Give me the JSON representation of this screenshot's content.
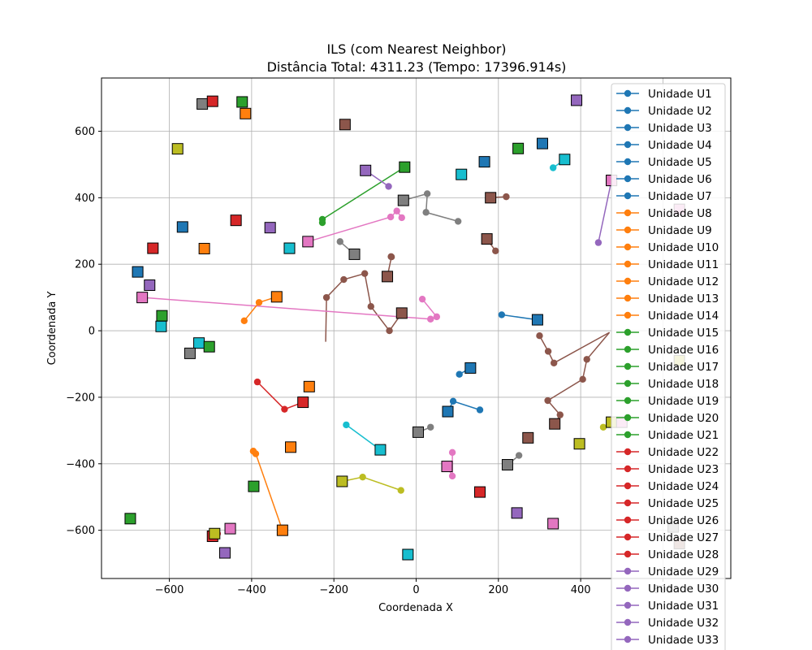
{
  "chart_data": {
    "type": "scatter",
    "title": "ILS (com Nearest Neighbor)",
    "subtitle": "Distância Total: 4311.23 (Tempo: 17396.914s)",
    "xlabel": "Coordenada X",
    "ylabel": "Coordenada Y",
    "xlim": [
      -765,
      765
    ],
    "ylim": [
      -745,
      760
    ],
    "xticks": [
      -600,
      -400,
      -200,
      0,
      200,
      400,
      600
    ],
    "yticks": [
      -600,
      -400,
      -200,
      0,
      200,
      400,
      600
    ],
    "tick_labels_x": [
      "−600",
      "−400",
      "−200",
      "0",
      "200",
      "400",
      "600"
    ],
    "tick_labels_y": [
      "−600",
      "−400",
      "−200",
      "0",
      "200",
      "400",
      "600"
    ],
    "grid": true,
    "legend_position": "right",
    "colors": [
      "#1f77b4",
      "#ff7f0e",
      "#2ca02c",
      "#d62728",
      "#9467bd",
      "#8c564b",
      "#e377c2",
      "#7f7f7f",
      "#bcbd22",
      "#17becf"
    ],
    "legend_entries": [
      {
        "label": "Unidade U1",
        "color": "#1f77b4"
      },
      {
        "label": "Unidade U2",
        "color": "#1f77b4"
      },
      {
        "label": "Unidade U3",
        "color": "#1f77b4"
      },
      {
        "label": "Unidade U4",
        "color": "#1f77b4"
      },
      {
        "label": "Unidade U5",
        "color": "#1f77b4"
      },
      {
        "label": "Unidade U6",
        "color": "#1f77b4"
      },
      {
        "label": "Unidade U7",
        "color": "#1f77b4"
      },
      {
        "label": "Unidade U8",
        "color": "#ff7f0e"
      },
      {
        "label": "Unidade U9",
        "color": "#ff7f0e"
      },
      {
        "label": "Unidade U10",
        "color": "#ff7f0e"
      },
      {
        "label": "Unidade U11",
        "color": "#ff7f0e"
      },
      {
        "label": "Unidade U12",
        "color": "#ff7f0e"
      },
      {
        "label": "Unidade U13",
        "color": "#ff7f0e"
      },
      {
        "label": "Unidade U14",
        "color": "#ff7f0e"
      },
      {
        "label": "Unidade U15",
        "color": "#2ca02c"
      },
      {
        "label": "Unidade U16",
        "color": "#2ca02c"
      },
      {
        "label": "Unidade U17",
        "color": "#2ca02c"
      },
      {
        "label": "Unidade U18",
        "color": "#2ca02c"
      },
      {
        "label": "Unidade U19",
        "color": "#2ca02c"
      },
      {
        "label": "Unidade U20",
        "color": "#2ca02c"
      },
      {
        "label": "Unidade U21",
        "color": "#2ca02c"
      },
      {
        "label": "Unidade U22",
        "color": "#d62728"
      },
      {
        "label": "Unidade U23",
        "color": "#d62728"
      },
      {
        "label": "Unidade U24",
        "color": "#d62728"
      },
      {
        "label": "Unidade U25",
        "color": "#d62728"
      },
      {
        "label": "Unidade U26",
        "color": "#d62728"
      },
      {
        "label": "Unidade U27",
        "color": "#d62728"
      },
      {
        "label": "Unidade U28",
        "color": "#d62728"
      },
      {
        "label": "Unidade U29",
        "color": "#9467bd"
      },
      {
        "label": "Unidade U30",
        "color": "#9467bd"
      },
      {
        "label": "Unidade U31",
        "color": "#9467bd"
      },
      {
        "label": "Unidade U32",
        "color": "#9467bd"
      },
      {
        "label": "Unidade U33",
        "color": "#9467bd"
      }
    ],
    "routes": [
      {
        "color": "#2ca02c",
        "points": [
          [
            -28,
            492
          ],
          [
            -228,
            335
          ],
          [
            -228,
            325
          ]
        ]
      },
      {
        "color": "#e377c2",
        "points": [
          [
            -263,
            268
          ],
          [
            -62,
            342
          ],
          [
            -47,
            360
          ],
          [
            -35,
            340
          ]
        ]
      },
      {
        "color": "#9467bd",
        "points": [
          [
            -123,
            482
          ],
          [
            -67,
            434
          ]
        ]
      },
      {
        "color": "#7f7f7f",
        "points": [
          [
            -31,
            392
          ],
          [
            27,
            412
          ],
          [
            24,
            356
          ],
          [
            102,
            329
          ]
        ]
      },
      {
        "color": "#8c564b",
        "points": [
          [
            181,
            400
          ],
          [
            219,
            403
          ]
        ]
      },
      {
        "color": "#8c564b",
        "points": [
          [
            172,
            276
          ],
          [
            193,
            240
          ]
        ]
      },
      {
        "color": "#7f7f7f",
        "points": [
          [
            -150,
            230
          ],
          [
            -185,
            268
          ]
        ]
      },
      {
        "color": "#8c564b",
        "points": [
          [
            -70,
            163
          ],
          [
            -60,
            222
          ],
          [
            -61,
            223
          ]
        ]
      },
      {
        "color": "#8c564b",
        "points": [
          [
            -220,
            -33
          ],
          [
            -218,
            100
          ],
          [
            -176,
            154
          ],
          [
            -125,
            172
          ],
          [
            -110,
            73
          ],
          [
            -65,
            0
          ],
          [
            -35,
            53
          ]
        ]
      },
      {
        "color": "#e377c2",
        "points": [
          [
            -666,
            100
          ],
          [
            35,
            35
          ],
          [
            50,
            42
          ],
          [
            15,
            95
          ]
        ]
      },
      {
        "color": "#ff7f0e",
        "points": [
          [
            -339,
            102
          ],
          [
            -382,
            85
          ],
          [
            -418,
            30
          ]
        ]
      },
      {
        "color": "#1f77b4",
        "points": [
          [
            295,
            33
          ],
          [
            208,
            48
          ]
        ]
      },
      {
        "color": "#8c564b",
        "points": [
          [
            470,
            -5
          ],
          [
            335,
            -97
          ],
          [
            321,
            -62
          ],
          [
            300,
            -15
          ]
        ]
      },
      {
        "color": "#8c564b",
        "points": [
          [
            470,
            -5
          ],
          [
            415,
            -86
          ],
          [
            405,
            -146
          ],
          [
            320,
            -210
          ],
          [
            350,
            -253
          ],
          [
            337,
            -280
          ]
        ]
      },
      {
        "color": "#1f77b4",
        "points": [
          [
            132,
            -112
          ],
          [
            105,
            -131
          ]
        ]
      },
      {
        "color": "#1f77b4",
        "points": [
          [
            77,
            -243
          ],
          [
            90,
            -212
          ],
          [
            155,
            -238
          ]
        ]
      },
      {
        "color": "#d62728",
        "points": [
          [
            -275,
            -215
          ],
          [
            -320,
            -236
          ],
          [
            -386,
            -154
          ]
        ]
      },
      {
        "color": "#17becf",
        "points": [
          [
            -87,
            -358
          ],
          [
            -170,
            -283
          ]
        ]
      },
      {
        "color": "#7f7f7f",
        "points": [
          [
            5,
            -305
          ],
          [
            35,
            -290
          ]
        ]
      },
      {
        "color": "#e377c2",
        "points": [
          [
            75,
            -408
          ],
          [
            88,
            -437
          ],
          [
            88,
            -366
          ]
        ]
      },
      {
        "color": "#7f7f7f",
        "points": [
          [
            222,
            -403
          ],
          [
            250,
            -375
          ]
        ]
      },
      {
        "color": "#bcbd22",
        "points": [
          [
            -180,
            -453
          ],
          [
            -130,
            -440
          ],
          [
            -37,
            -480
          ]
        ]
      },
      {
        "color": "#ff7f0e",
        "points": [
          [
            -325,
            -600
          ],
          [
            -390,
            -370
          ],
          [
            -396,
            -362
          ]
        ]
      },
      {
        "color": "#d62728",
        "points": [
          [
            -495,
            -618
          ],
          [
            -483,
            -610
          ]
        ]
      },
      {
        "color": "#bcbd22",
        "points": [
          [
            -490,
            -610
          ],
          [
            -487,
            -605
          ]
        ]
      },
      {
        "color": "#17becf",
        "points": [
          [
            361,
            515
          ],
          [
            333,
            490
          ]
        ]
      },
      {
        "color": "#9467bd",
        "points": [
          [
            475,
            452
          ],
          [
            443,
            265
          ]
        ]
      },
      {
        "color": "#bcbd22",
        "points": [
          [
            475,
            -275
          ],
          [
            455,
            -290
          ]
        ]
      }
    ],
    "squares": [
      {
        "x": -520,
        "y": 682,
        "color": "#7f7f7f"
      },
      {
        "x": -495,
        "y": 690,
        "color": "#d62728"
      },
      {
        "x": -423,
        "y": 688,
        "color": "#2ca02c"
      },
      {
        "x": -415,
        "y": 653,
        "color": "#ff7f0e"
      },
      {
        "x": -173,
        "y": 620,
        "color": "#8c564b"
      },
      {
        "x": -580,
        "y": 547,
        "color": "#bcbd22"
      },
      {
        "x": -123,
        "y": 482,
        "color": "#9467bd"
      },
      {
        "x": -28,
        "y": 492,
        "color": "#2ca02c"
      },
      {
        "x": 110,
        "y": 470,
        "color": "#17becf"
      },
      {
        "x": 166,
        "y": 508,
        "color": "#1f77b4"
      },
      {
        "x": 248,
        "y": 548,
        "color": "#2ca02c"
      },
      {
        "x": 307,
        "y": 563,
        "color": "#1f77b4"
      },
      {
        "x": 361,
        "y": 515,
        "color": "#17becf"
      },
      {
        "x": 390,
        "y": 693,
        "color": "#9467bd"
      },
      {
        "x": -31,
        "y": 392,
        "color": "#7f7f7f"
      },
      {
        "x": 181,
        "y": 400,
        "color": "#8c564b"
      },
      {
        "x": 475,
        "y": 452,
        "color": "#9467bd"
      },
      {
        "x": -568,
        "y": 312,
        "color": "#1f77b4"
      },
      {
        "x": -438,
        "y": 332,
        "color": "#d62728"
      },
      {
        "x": -355,
        "y": 310,
        "color": "#9467bd"
      },
      {
        "x": -263,
        "y": 268,
        "color": "#e377c2"
      },
      {
        "x": -640,
        "y": 248,
        "color": "#d62728"
      },
      {
        "x": -515,
        "y": 247,
        "color": "#ff7f0e"
      },
      {
        "x": -308,
        "y": 248,
        "color": "#2ca02c"
      },
      {
        "x": -308,
        "y": 248,
        "color": "#17becf"
      },
      {
        "x": -150,
        "y": 230,
        "color": "#7f7f7f"
      },
      {
        "x": 172,
        "y": 276,
        "color": "#8c564b"
      },
      {
        "x": -677,
        "y": 177,
        "color": "#1f77b4"
      },
      {
        "x": -648,
        "y": 137,
        "color": "#9467bd"
      },
      {
        "x": -70,
        "y": 163,
        "color": "#8c564b"
      },
      {
        "x": -666,
        "y": 100,
        "color": "#e377c2"
      },
      {
        "x": -339,
        "y": 102,
        "color": "#ff7f0e"
      },
      {
        "x": -35,
        "y": 53,
        "color": "#8c564b"
      },
      {
        "x": -618,
        "y": 45,
        "color": "#2ca02c"
      },
      {
        "x": -620,
        "y": 13,
        "color": "#17becf"
      },
      {
        "x": 295,
        "y": 33,
        "color": "#1f77b4"
      },
      {
        "x": -528,
        "y": -37,
        "color": "#17becf"
      },
      {
        "x": -550,
        "y": -68,
        "color": "#7f7f7f"
      },
      {
        "x": -503,
        "y": -48,
        "color": "#2ca02c"
      },
      {
        "x": 132,
        "y": -112,
        "color": "#1f77b4"
      },
      {
        "x": -260,
        "y": -168,
        "color": "#ff7f0e"
      },
      {
        "x": -275,
        "y": -215,
        "color": "#d62728"
      },
      {
        "x": 77,
        "y": -243,
        "color": "#1f77b4"
      },
      {
        "x": 5,
        "y": -305,
        "color": "#7f7f7f"
      },
      {
        "x": 337,
        "y": -280,
        "color": "#8c564b"
      },
      {
        "x": 272,
        "y": -322,
        "color": "#8c564b"
      },
      {
        "x": 397,
        "y": -340,
        "color": "#bcbd22"
      },
      {
        "x": -305,
        "y": -350,
        "color": "#ff7f0e"
      },
      {
        "x": -87,
        "y": -358,
        "color": "#17becf"
      },
      {
        "x": 222,
        "y": -403,
        "color": "#7f7f7f"
      },
      {
        "x": 75,
        "y": -408,
        "color": "#e377c2"
      },
      {
        "x": -180,
        "y": -453,
        "color": "#bcbd22"
      },
      {
        "x": -395,
        "y": -468,
        "color": "#2ca02c"
      },
      {
        "x": 155,
        "y": -485,
        "color": "#d62728"
      },
      {
        "x": 245,
        "y": -548,
        "color": "#9467bd"
      },
      {
        "x": 333,
        "y": -580,
        "color": "#e377c2"
      },
      {
        "x": -695,
        "y": -565,
        "color": "#2ca02c"
      },
      {
        "x": -452,
        "y": -595,
        "color": "#e377c2"
      },
      {
        "x": -325,
        "y": -600,
        "color": "#ff7f0e"
      },
      {
        "x": -495,
        "y": -618,
        "color": "#d62728"
      },
      {
        "x": -490,
        "y": -610,
        "color": "#bcbd22"
      },
      {
        "x": -465,
        "y": -668,
        "color": "#9467bd"
      },
      {
        "x": -20,
        "y": -673,
        "color": "#17becf"
      },
      {
        "x": 475,
        "y": -275,
        "color": "#bcbd22"
      },
      {
        "x": 500,
        "y": -275,
        "color": "#e377c2"
      },
      {
        "x": 475,
        "y": 452,
        "color": "#e377c2"
      },
      {
        "x": 640,
        "y": -90,
        "color": "#bcbd22"
      },
      {
        "x": 625,
        "y": -590,
        "color": "#7f7f7f"
      },
      {
        "x": 640,
        "y": -640,
        "color": "#8c564b"
      },
      {
        "x": 640,
        "y": 365,
        "color": "#e377c2"
      }
    ]
  }
}
